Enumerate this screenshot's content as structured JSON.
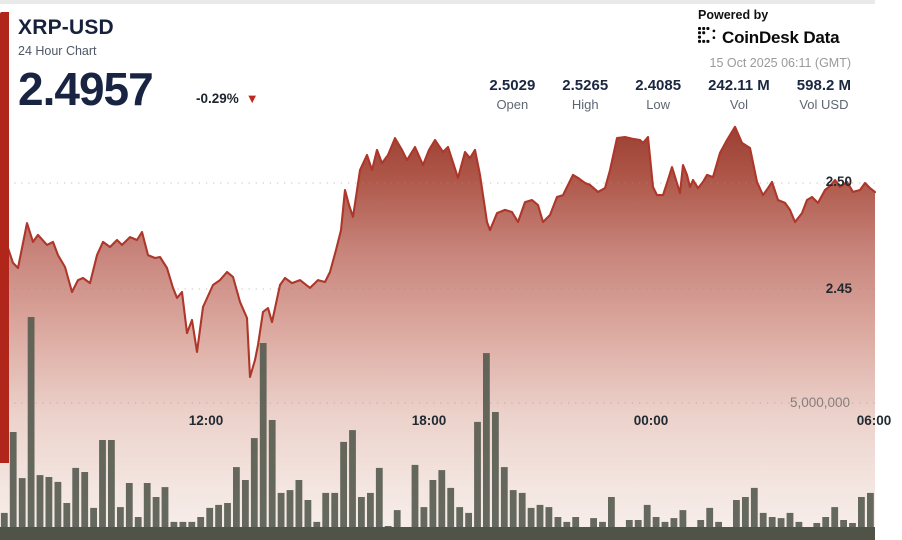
{
  "header": {
    "symbol": "XRP-USD",
    "subtitle": "24 Hour Chart",
    "price": "2.4957",
    "change": "-0.29%",
    "arrow": "▼",
    "powered_by": "Powered by",
    "brand": "CoinDesk Data",
    "timestamp": "15 Oct 2025 06:11 (GMT)",
    "accent_color": "#b0261b",
    "down_color": "#c1281d"
  },
  "stats": [
    {
      "value": "2.5029",
      "label": "Open"
    },
    {
      "value": "2.5265",
      "label": "High"
    },
    {
      "value": "2.4085",
      "label": "Low"
    },
    {
      "value": "242.11 M",
      "label": "Vol"
    },
    {
      "value": "598.2 M",
      "label": "Vol USD"
    }
  ],
  "chart_data": {
    "type": "area",
    "title": "XRP-USD 24 Hour Chart",
    "x_ticks": [
      "12:00",
      "18:00",
      "00:00",
      "06:00"
    ],
    "price_axis": {
      "labels": [
        "2.50",
        "2.45"
      ],
      "values": [
        2.5,
        2.45
      ],
      "side": "right"
    },
    "volume_axis": {
      "label": "5,000,000",
      "value": 5000000
    },
    "grid": "dotted-horizontal",
    "legend": "none",
    "current_price": 2.4957,
    "open": 2.5029,
    "high": 2.5265,
    "low": 2.4085,
    "price_series": [
      [
        0,
        2.4599
      ],
      [
        8,
        2.4693
      ],
      [
        13,
        2.4623
      ],
      [
        18,
        2.4599
      ],
      [
        27,
        2.4811
      ],
      [
        33,
        2.4722
      ],
      [
        38,
        2.4755
      ],
      [
        47,
        2.4708
      ],
      [
        53,
        2.4722
      ],
      [
        58,
        2.466
      ],
      [
        65,
        2.4604
      ],
      [
        72,
        2.4486
      ],
      [
        78,
        2.4542
      ],
      [
        83,
        2.4552
      ],
      [
        90,
        2.4528
      ],
      [
        97,
        2.466
      ],
      [
        103,
        2.4722
      ],
      [
        110,
        2.4698
      ],
      [
        117,
        2.4731
      ],
      [
        122,
        2.4708
      ],
      [
        130,
        2.4745
      ],
      [
        137,
        2.4731
      ],
      [
        142,
        2.4769
      ],
      [
        148,
        2.466
      ],
      [
        155,
        2.4646
      ],
      [
        160,
        2.4651
      ],
      [
        167,
        2.4599
      ],
      [
        173,
        2.4505
      ],
      [
        177,
        2.4458
      ],
      [
        182,
        2.4486
      ],
      [
        187,
        2.4292
      ],
      [
        192,
        2.4354
      ],
      [
        197,
        2.4203
      ],
      [
        203,
        2.4415
      ],
      [
        213,
        2.4519
      ],
      [
        220,
        2.4542
      ],
      [
        227,
        2.458
      ],
      [
        233,
        2.4557
      ],
      [
        240,
        2.4439
      ],
      [
        247,
        2.4363
      ],
      [
        250,
        2.4085
      ],
      [
        255,
        2.4165
      ],
      [
        258,
        2.4236
      ],
      [
        263,
        2.4392
      ],
      [
        268,
        2.441
      ],
      [
        272,
        2.4344
      ],
      [
        280,
        2.4519
      ],
      [
        285,
        2.4552
      ],
      [
        292,
        2.4528
      ],
      [
        300,
        2.4542
      ],
      [
        310,
        2.4505
      ],
      [
        318,
        2.4542
      ],
      [
        325,
        2.4533
      ],
      [
        330,
        2.458
      ],
      [
        336,
        2.4684
      ],
      [
        341,
        2.4778
      ],
      [
        345,
        2.4967
      ],
      [
        349,
        2.4896
      ],
      [
        353,
        2.484
      ],
      [
        360,
        2.5061
      ],
      [
        367,
        2.5132
      ],
      [
        372,
        2.5061
      ],
      [
        377,
        2.5156
      ],
      [
        382,
        2.5094
      ],
      [
        388,
        2.5132
      ],
      [
        395,
        2.5212
      ],
      [
        402,
        2.5156
      ],
      [
        407,
        2.5108
      ],
      [
        415,
        2.517
      ],
      [
        423,
        2.5085
      ],
      [
        429,
        2.5156
      ],
      [
        435,
        2.5203
      ],
      [
        443,
        2.5146
      ],
      [
        448,
        2.517
      ],
      [
        458,
        2.5024
      ],
      [
        465,
        2.5146
      ],
      [
        470,
        2.5118
      ],
      [
        475,
        2.5156
      ],
      [
        480,
        2.5038
      ],
      [
        487,
        2.4816
      ],
      [
        490,
        2.4778
      ],
      [
        497,
        2.4858
      ],
      [
        505,
        2.4873
      ],
      [
        512,
        2.4863
      ],
      [
        518,
        2.4816
      ],
      [
        525,
        2.491
      ],
      [
        532,
        2.492
      ],
      [
        538,
        2.4896
      ],
      [
        543,
        2.4816
      ],
      [
        550,
        2.4849
      ],
      [
        557,
        2.4934
      ],
      [
        563,
        2.4943
      ],
      [
        573,
        2.5038
      ],
      [
        578,
        2.5024
      ],
      [
        585,
        2.5
      ],
      [
        590,
        2.4991
      ],
      [
        598,
        2.4958
      ],
      [
        605,
        2.4976
      ],
      [
        610,
        2.5061
      ],
      [
        617,
        2.5212
      ],
      [
        625,
        2.5217
      ],
      [
        633,
        2.5208
      ],
      [
        640,
        2.5203
      ],
      [
        643,
        2.5189
      ],
      [
        648,
        2.5217
      ],
      [
        653,
        2.4981
      ],
      [
        657,
        2.4943
      ],
      [
        663,
        2.4943
      ],
      [
        668,
        2.5014
      ],
      [
        672,
        2.5075
      ],
      [
        676,
        2.5014
      ],
      [
        680,
        2.4953
      ],
      [
        683,
        2.5085
      ],
      [
        687,
        2.5038
      ],
      [
        690,
        2.4981
      ],
      [
        693,
        2.5014
      ],
      [
        698,
        2.4976
      ],
      [
        703,
        2.5005
      ],
      [
        707,
        2.5038
      ],
      [
        713,
        2.5028
      ],
      [
        720,
        2.5142
      ],
      [
        727,
        2.5203
      ],
      [
        735,
        2.5265
      ],
      [
        742,
        2.5189
      ],
      [
        750,
        2.5165
      ],
      [
        757,
        2.5005
      ],
      [
        763,
        2.4943
      ],
      [
        768,
        2.4976
      ],
      [
        772,
        2.5005
      ],
      [
        778,
        2.492
      ],
      [
        785,
        2.4906
      ],
      [
        790,
        2.4873
      ],
      [
        795,
        2.4816
      ],
      [
        802,
        2.4858
      ],
      [
        807,
        2.492
      ],
      [
        812,
        2.4934
      ],
      [
        818,
        2.4906
      ],
      [
        825,
        2.4967
      ],
      [
        830,
        2.4986
      ],
      [
        835,
        2.5014
      ],
      [
        840,
        2.4981
      ],
      [
        847,
        2.5005
      ],
      [
        853,
        2.4958
      ],
      [
        860,
        2.4967
      ],
      [
        865,
        2.5
      ],
      [
        870,
        2.4976
      ],
      [
        875,
        2.4957
      ]
    ],
    "volume_series_millions": [
      0.99,
      3.94,
      2.26,
      8.14,
      2.37,
      2.3,
      2.12,
      1.35,
      2.63,
      2.48,
      1.17,
      3.65,
      3.65,
      1.2,
      2.08,
      0.84,
      2.08,
      1.57,
      1.93,
      0.66,
      0.66,
      0.66,
      0.84,
      1.17,
      1.28,
      1.35,
      2.66,
      2.19,
      3.72,
      7.19,
      4.38,
      1.72,
      1.82,
      2.19,
      1.46,
      0.66,
      1.72,
      1.72,
      3.58,
      4.01,
      1.57,
      1.72,
      2.63,
      0.51,
      1.09,
      0.47,
      2.74,
      1.2,
      2.19,
      2.55,
      1.9,
      1.2,
      0.99,
      4.31,
      6.82,
      4.67,
      2.66,
      1.82,
      1.72,
      1.17,
      1.28,
      1.2,
      0.84,
      0.66,
      0.84,
      0.47,
      0.8,
      0.66,
      1.57,
      0.36,
      0.73,
      0.73,
      1.28,
      0.84,
      0.66,
      0.8,
      1.09,
      0.47,
      0.73,
      1.17,
      0.66,
      0.44,
      1.46,
      1.57,
      1.9,
      0.99,
      0.84,
      0.8,
      0.99,
      0.66,
      0.44,
      0.62,
      0.84,
      1.2,
      0.73,
      0.62,
      1.57,
      1.72
    ],
    "colors": {
      "line": "#ac372a",
      "bar": "#585c51",
      "baseline_band": "#4f5348",
      "gridline": "#9b918c",
      "area_gradient": [
        [
          0,
          "#9a3f33"
        ],
        [
          0.12,
          "#ad5547"
        ],
        [
          0.3,
          "#c7837a"
        ],
        [
          0.5,
          "#dcaaa1"
        ],
        [
          0.7,
          "#ecd2cb"
        ],
        [
          0.88,
          "#f4e6e1"
        ],
        [
          1,
          "#f7efec"
        ]
      ]
    }
  }
}
